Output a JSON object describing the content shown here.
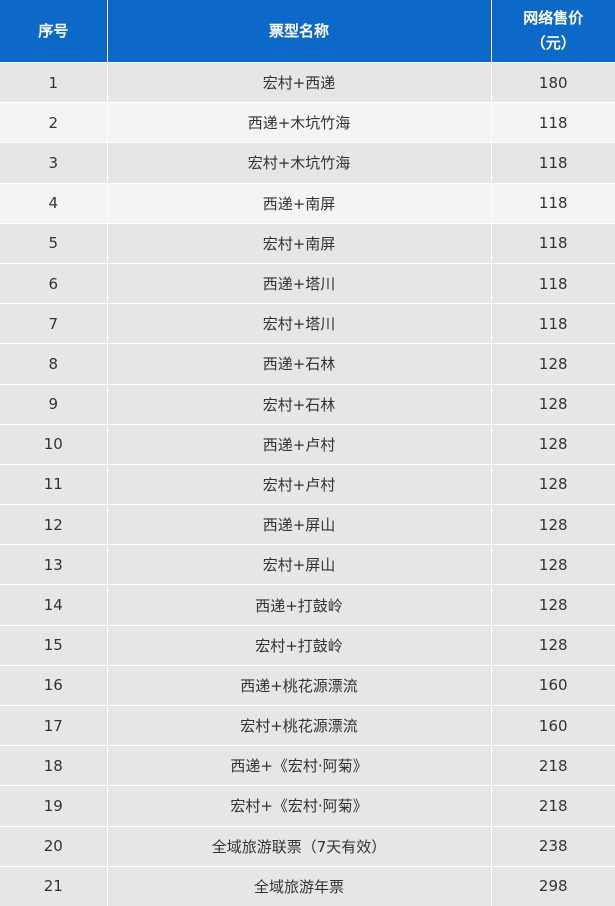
{
  "header": {
    "col_index": "序号",
    "col_name": "票型名称",
    "col_price_line1": "网络售价",
    "col_price_line2": "（元）"
  },
  "colors": {
    "header_bg": "#0d69c8",
    "row_dark": "#e6e6e6",
    "row_light": "#f4f4f4"
  },
  "rows": [
    {
      "no": "1",
      "name": "宏村+西递",
      "price": "180",
      "shade": "dark"
    },
    {
      "no": "2",
      "name": "西递+木坑竹海",
      "price": "118",
      "shade": "light"
    },
    {
      "no": "3",
      "name": "宏村+木坑竹海",
      "price": "118",
      "shade": "dark"
    },
    {
      "no": "4",
      "name": "西递+南屏",
      "price": "118",
      "shade": "light"
    },
    {
      "no": "5",
      "name": "宏村+南屏",
      "price": "118",
      "shade": "dark"
    },
    {
      "no": "6",
      "name": "西递+塔川",
      "price": "118",
      "shade": "dark"
    },
    {
      "no": "7",
      "name": "宏村+塔川",
      "price": "118",
      "shade": "dark"
    },
    {
      "no": "8",
      "name": "西递+石林",
      "price": "128",
      "shade": "dark"
    },
    {
      "no": "9",
      "name": "宏村+石林",
      "price": "128",
      "shade": "dark"
    },
    {
      "no": "10",
      "name": "西递+卢村",
      "price": "128",
      "shade": "dark"
    },
    {
      "no": "11",
      "name": "宏村+卢村",
      "price": "128",
      "shade": "dark"
    },
    {
      "no": "12",
      "name": "西递+屏山",
      "price": "128",
      "shade": "dark"
    },
    {
      "no": "13",
      "name": "宏村+屏山",
      "price": "128",
      "shade": "dark"
    },
    {
      "no": "14",
      "name": "西递+打鼓岭",
      "price": "128",
      "shade": "dark"
    },
    {
      "no": "15",
      "name": "宏村+打鼓岭",
      "price": "128",
      "shade": "dark"
    },
    {
      "no": "16",
      "name": "西递+桃花源漂流",
      "price": "160",
      "shade": "dark"
    },
    {
      "no": "17",
      "name": "宏村+桃花源漂流",
      "price": "160",
      "shade": "dark"
    },
    {
      "no": "18",
      "name": "西递+《宏村·阿菊》",
      "price": "218",
      "shade": "dark"
    },
    {
      "no": "19",
      "name": "宏村+《宏村·阿菊》",
      "price": "218",
      "shade": "dark"
    },
    {
      "no": "20",
      "name": "全域旅游联票（7天有效）",
      "price": "238",
      "shade": "dark"
    },
    {
      "no": "21",
      "name": "全域旅游年票",
      "price": "298",
      "shade": "dark"
    }
  ]
}
